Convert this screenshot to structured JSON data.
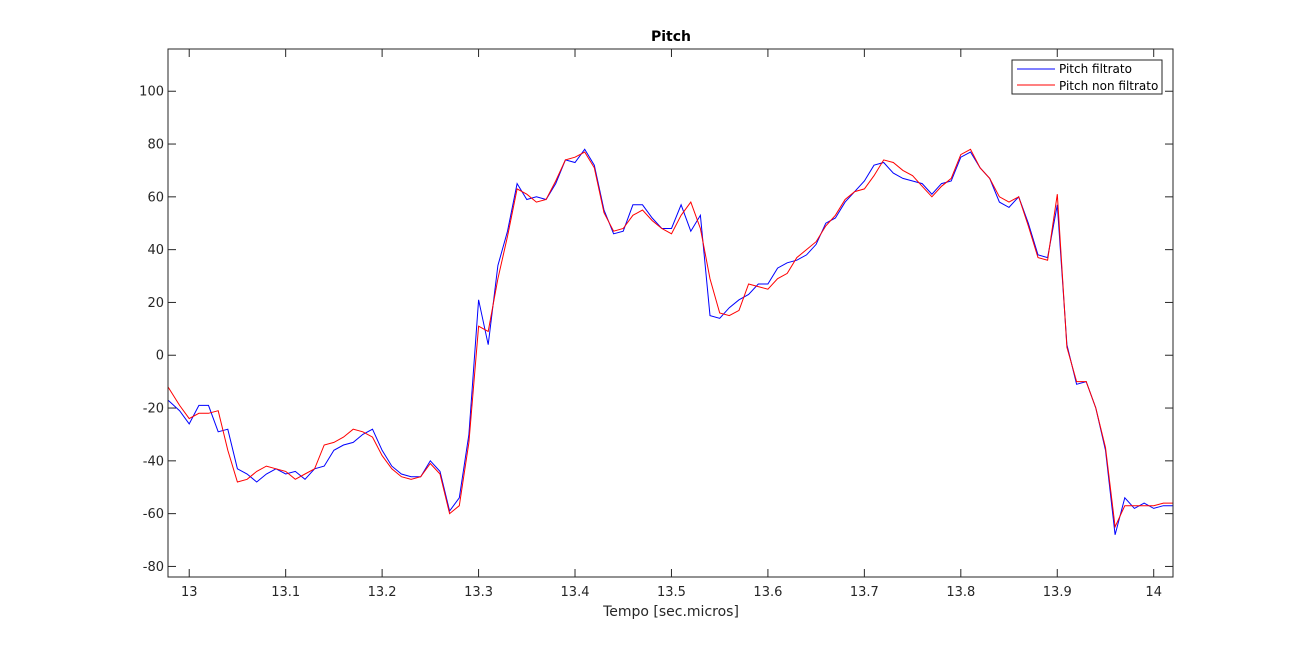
{
  "chart_data": {
    "type": "line",
    "title": "Pitch",
    "xlabel": "Tempo [sec.micros]",
    "ylabel": "",
    "xlim": [
      12.978,
      14.02
    ],
    "ylim": [
      -84,
      116
    ],
    "xticks": [
      13,
      13.1,
      13.2,
      13.3,
      13.4,
      13.5,
      13.6,
      13.7,
      13.8,
      13.9,
      14
    ],
    "xtick_labels": [
      "13",
      "13.1",
      "13.2",
      "13.3",
      "13.4",
      "13.5",
      "13.6",
      "13.7",
      "13.8",
      "13.9",
      "14"
    ],
    "yticks": [
      -80,
      -60,
      -40,
      -20,
      0,
      20,
      40,
      60,
      80,
      100
    ],
    "ytick_labels": [
      "-80",
      "-60",
      "-40",
      "-20",
      "0",
      "20",
      "40",
      "60",
      "80",
      "100"
    ],
    "grid": false,
    "legend_position": "top-right",
    "series": [
      {
        "name": "Pitch filtrato",
        "color": "#0000ff",
        "x": [
          12.978,
          12.99,
          13.0,
          13.01,
          13.02,
          13.03,
          13.04,
          13.05,
          13.06,
          13.07,
          13.08,
          13.09,
          13.1,
          13.11,
          13.12,
          13.13,
          13.14,
          13.15,
          13.16,
          13.17,
          13.18,
          13.19,
          13.2,
          13.21,
          13.22,
          13.23,
          13.24,
          13.25,
          13.26,
          13.27,
          13.28,
          13.29,
          13.3,
          13.31,
          13.32,
          13.33,
          13.34,
          13.35,
          13.36,
          13.37,
          13.38,
          13.39,
          13.4,
          13.41,
          13.42,
          13.43,
          13.44,
          13.45,
          13.46,
          13.47,
          13.48,
          13.49,
          13.5,
          13.51,
          13.52,
          13.53,
          13.54,
          13.55,
          13.56,
          13.57,
          13.58,
          13.59,
          13.6,
          13.61,
          13.62,
          13.63,
          13.64,
          13.65,
          13.66,
          13.67,
          13.68,
          13.69,
          13.7,
          13.71,
          13.72,
          13.73,
          13.74,
          13.75,
          13.76,
          13.77,
          13.78,
          13.79,
          13.8,
          13.81,
          13.82,
          13.83,
          13.84,
          13.85,
          13.86,
          13.87,
          13.88,
          13.89,
          13.9,
          13.91,
          13.92,
          13.93,
          13.94,
          13.95,
          13.96,
          13.97,
          13.98,
          13.99,
          14.0,
          14.01,
          14.02
        ],
        "y": [
          -17,
          -21,
          -26,
          -19,
          -19,
          -29,
          -28,
          -43,
          -45,
          -48,
          -45,
          -43,
          -45,
          -44,
          -47,
          -43,
          -42,
          -36,
          -34,
          -33,
          -30,
          -28,
          -36,
          -42,
          -45,
          -46,
          -46,
          -40,
          -44,
          -59,
          -54,
          -30,
          21,
          4,
          34,
          47,
          65,
          59,
          60,
          59,
          65,
          74,
          73,
          78,
          72,
          55,
          46,
          47,
          57,
          57,
          52,
          48,
          48,
          57,
          47,
          53,
          15,
          14,
          18,
          21,
          23,
          27,
          27,
          33,
          35,
          36,
          38,
          42,
          50,
          52,
          58,
          62,
          66,
          72,
          73,
          69,
          67,
          66,
          65,
          61,
          65,
          66,
          75,
          77,
          71,
          67,
          58,
          56,
          60,
          50,
          38,
          37,
          57,
          4,
          -11,
          -10,
          -20,
          -36,
          -68,
          -54,
          -58,
          -56,
          -58,
          -57,
          -57
        ]
      },
      {
        "name": "Pitch non filtrato",
        "color": "#ff0000",
        "x": [
          12.978,
          12.99,
          13.0,
          13.01,
          13.02,
          13.03,
          13.04,
          13.05,
          13.06,
          13.07,
          13.08,
          13.09,
          13.1,
          13.11,
          13.12,
          13.13,
          13.14,
          13.15,
          13.16,
          13.17,
          13.18,
          13.19,
          13.2,
          13.21,
          13.22,
          13.23,
          13.24,
          13.25,
          13.26,
          13.27,
          13.28,
          13.29,
          13.3,
          13.31,
          13.32,
          13.33,
          13.34,
          13.35,
          13.36,
          13.37,
          13.38,
          13.39,
          13.4,
          13.41,
          13.42,
          13.43,
          13.44,
          13.45,
          13.46,
          13.47,
          13.48,
          13.49,
          13.5,
          13.51,
          13.52,
          13.53,
          13.54,
          13.55,
          13.56,
          13.57,
          13.58,
          13.59,
          13.6,
          13.61,
          13.62,
          13.63,
          13.64,
          13.65,
          13.66,
          13.67,
          13.68,
          13.69,
          13.7,
          13.71,
          13.72,
          13.73,
          13.74,
          13.75,
          13.76,
          13.77,
          13.78,
          13.79,
          13.8,
          13.81,
          13.82,
          13.83,
          13.84,
          13.85,
          13.86,
          13.87,
          13.88,
          13.89,
          13.9,
          13.91,
          13.92,
          13.93,
          13.94,
          13.95,
          13.96,
          13.97,
          13.98,
          13.99,
          14.0,
          14.01,
          14.02
        ],
        "y": [
          -12,
          -19,
          -24,
          -22,
          -22,
          -21,
          -36,
          -48,
          -47,
          -44,
          -42,
          -43,
          -44,
          -47,
          -45,
          -43,
          -34,
          -33,
          -31,
          -28,
          -29,
          -31,
          -38,
          -43,
          -46,
          -47,
          -46,
          -41,
          -45,
          -60,
          -57,
          -33,
          11,
          9,
          29,
          45,
          63,
          61,
          58,
          59,
          66,
          74,
          75,
          77,
          71,
          54,
          47,
          48,
          53,
          55,
          51,
          48,
          46,
          53,
          58,
          48,
          29,
          16,
          15,
          17,
          27,
          26,
          25,
          29,
          31,
          37,
          40,
          43,
          49,
          53,
          59,
          62,
          63,
          68,
          74,
          73,
          70,
          68,
          64,
          60,
          64,
          67,
          76,
          78,
          71,
          67,
          60,
          58,
          60,
          49,
          37,
          36,
          61,
          3,
          -10,
          -10,
          -20,
          -35,
          -65,
          -57,
          -57,
          -57,
          -57,
          -56,
          -56
        ]
      }
    ]
  }
}
